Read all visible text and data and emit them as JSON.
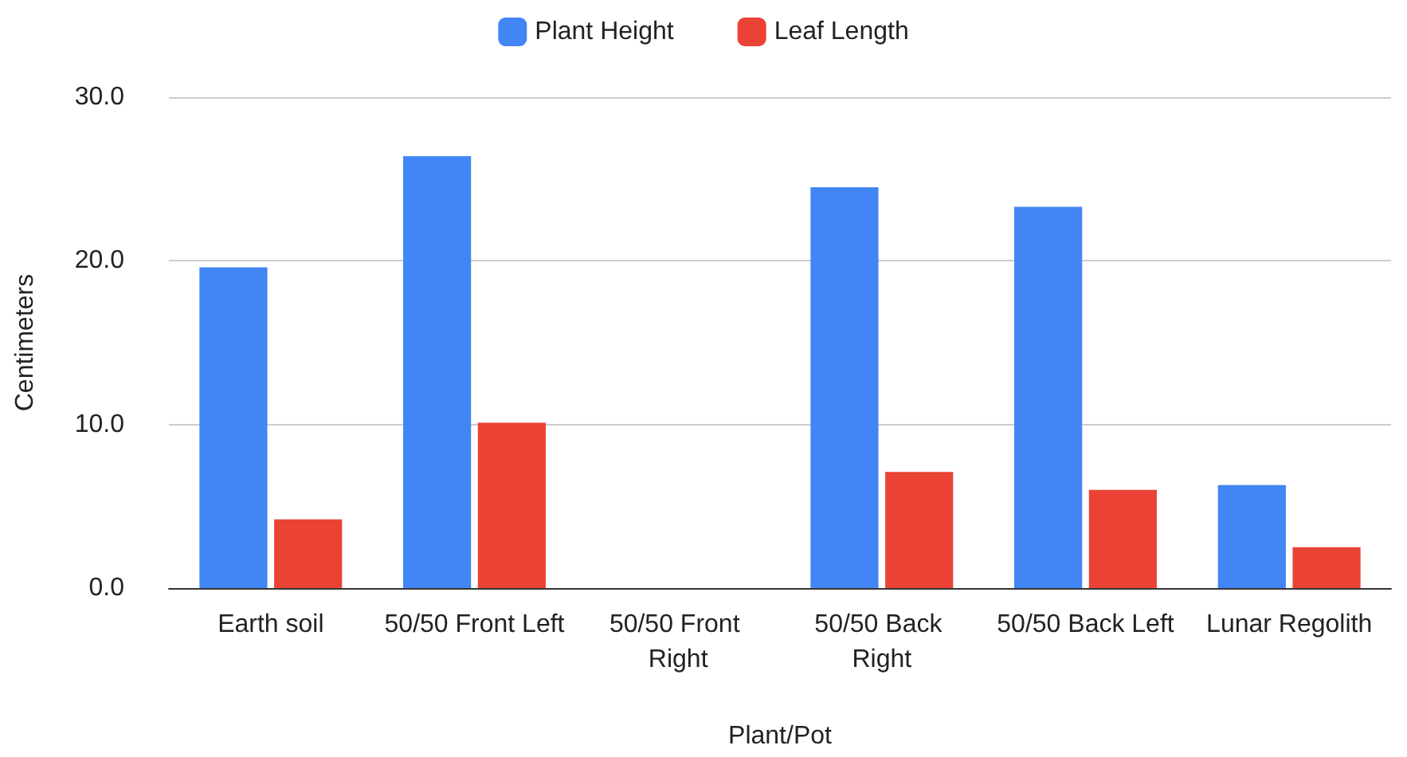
{
  "chart_data": {
    "type": "bar",
    "categories": [
      "Earth soil",
      "50/50 Front Left",
      "50/50 Front Right",
      "50/50 Back Right",
      "50/50 Back Left",
      "Lunar Regolith"
    ],
    "series": [
      {
        "name": "Plant Height",
        "color": "#4285f4",
        "values": [
          19.6,
          26.4,
          0,
          24.5,
          23.3,
          6.3
        ]
      },
      {
        "name": "Leaf Length",
        "color": "#ea4335",
        "values": [
          4.2,
          10.1,
          0,
          7.1,
          6.0,
          2.5
        ]
      }
    ],
    "xlabel": "Plant/Pot",
    "ylabel": "Centimeters",
    "ylim": [
      0,
      30
    ],
    "yticks": [
      {
        "value": 0,
        "label": "0.0"
      },
      {
        "value": 10,
        "label": "10.0"
      },
      {
        "value": 20,
        "label": "20.0"
      },
      {
        "value": 30,
        "label": "30.0"
      }
    ],
    "grid": "y",
    "legend": "top"
  }
}
